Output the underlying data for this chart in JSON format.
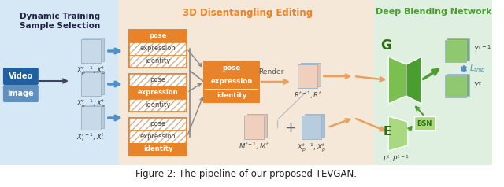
{
  "caption": "Figure 2: The pipeline of our proposed TEVGAN.",
  "caption_fontsize": 8.5,
  "fig_width": 6.4,
  "fig_height": 2.38,
  "bg_color": "#ffffff",
  "section_bg_colors": {
    "left": "#d6e8f5",
    "middle": "#f5e8d8",
    "right": "#e0f0e0"
  },
  "section_titles": {
    "left": "Dynamic Training\nSample Selection",
    "middle": "3D Disentangling Editing",
    "right": "Deep Blending Network"
  },
  "orange_color": "#e8832a",
  "orange_light": "#f5c89a",
  "green_dark": "#4a9e30",
  "green_mid": "#7bbf50",
  "green_light": "#a8d880",
  "blue_dark": "#2060a0",
  "blue_mid": "#5090c8",
  "blue_light": "#b0cce8",
  "peach_color": "#e8c0a8",
  "peach_light": "#f0d0bc",
  "gray_page": "#b8cce0",
  "gray_page2": "#c8d8e8",
  "arrow_orange": "#e8a060",
  "arrow_blue": "#5090c8",
  "arrow_green": "#4a9e30",
  "arrow_dark": "#404060",
  "video_color": "#2060a0",
  "image_color": "#6090c0"
}
